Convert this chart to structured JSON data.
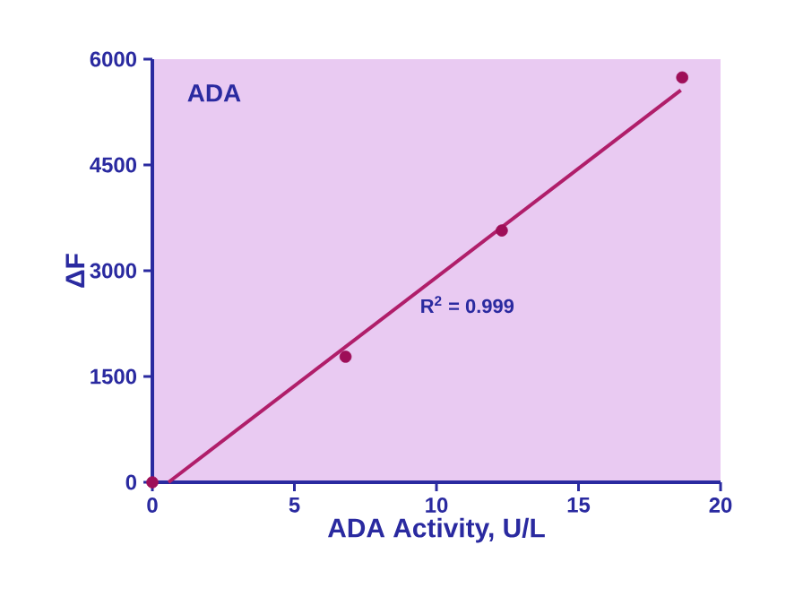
{
  "chart_data": {
    "type": "scatter",
    "xlabel": "ADA Activity, U/L",
    "ylabel": "ΔF",
    "annotations": [
      "ADA",
      "R$^{2}$ = 0.999"
    ],
    "series": [
      {
        "color": "#9e0e58",
        "x": [
          0,
          6.8,
          12.3,
          18.65
        ],
        "values": [
          0,
          1780,
          3570,
          5740
        ],
        "marker": "circle"
      },
      {
        "type": "line",
        "color": "#b01e6a",
        "x": [
          0.57,
          18.6
        ],
        "values": [
          0,
          5560
        ],
        "marker": "none",
        "line_style": "solid"
      }
    ],
    "xlim": [
      0,
      20
    ],
    "ylim": [
      0,
      6000
    ],
    "xticks": [
      0,
      5,
      10,
      15,
      20
    ],
    "yticks": [
      0,
      1500,
      3000,
      4500,
      6000
    ],
    "grid": false
  }
}
